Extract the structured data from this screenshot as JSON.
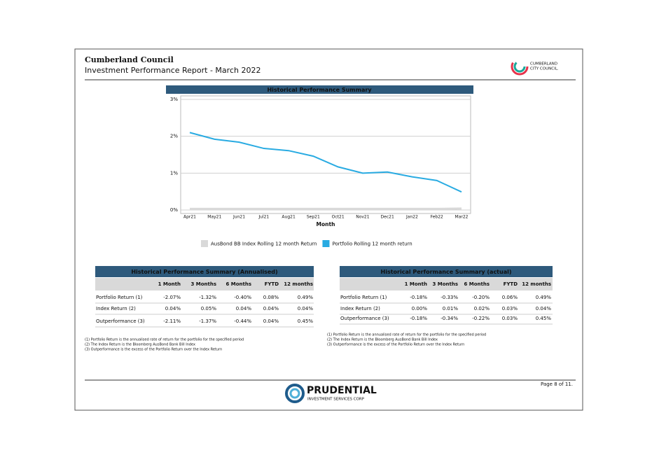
{
  "header": {
    "title": "Cumberland Council",
    "subtitle": "Investment Performance Report - March 2022",
    "logo_lines": [
      "CUMBERLAND",
      "CITY COUNCIL."
    ]
  },
  "chart_data": {
    "type": "line",
    "title": "Historical Performance Summary",
    "x_label": "Month",
    "categories": [
      "Apr21",
      "May21",
      "Jun21",
      "Jul21",
      "Aug21",
      "Sep21",
      "Oct21",
      "Nov21",
      "Dec21",
      "Jan22",
      "Feb22",
      "Mar22"
    ],
    "series": [
      {
        "name": "AusBond BB Index Rolling 12 month Return",
        "color": "#d9d9d9",
        "values": [
          0.03,
          0.03,
          0.03,
          0.03,
          0.03,
          0.03,
          0.03,
          0.03,
          0.03,
          0.03,
          0.03,
          0.04
        ]
      },
      {
        "name": "Portfolio Rolling 12 month return",
        "color": "#29abe2",
        "values": [
          2.1,
          1.92,
          1.84,
          1.67,
          1.61,
          1.46,
          1.17,
          1.0,
          1.03,
          0.9,
          0.8,
          0.49
        ]
      }
    ],
    "ylim": [
      0,
      3
    ],
    "yticks": [
      {
        "value": 0,
        "label": "0%"
      },
      {
        "value": 1,
        "label": "1%"
      },
      {
        "value": 2,
        "label": "2%"
      },
      {
        "value": 3,
        "label": "3%"
      }
    ],
    "grid": true,
    "legend": "bottom"
  },
  "tables": [
    {
      "title": "Historical Performance Summary (Annualised)",
      "columns": [
        "1 Month",
        "3 Months",
        "6 Months",
        "FYTD",
        "12 months"
      ],
      "rows": [
        [
          "Portfolio Return (1)",
          "-2.07%",
          "-1.32%",
          "-0.40%",
          "0.08%",
          "0.49%"
        ],
        [
          "Index Return (2)",
          "0.04%",
          "0.05%",
          "0.04%",
          "0.04%",
          "0.04%"
        ],
        [
          "Outperformance (3)",
          "-2.11%",
          "-1.37%",
          "-0.44%",
          "0.04%",
          "0.45%"
        ]
      ],
      "notes": [
        "(1) Portfolio Return is the annualised rate of return for the portfolio for the specified period",
        "(2) The Index Return is the Bloomberg AusBond Bank Bill Index",
        "(3) Outperformance is the excess of the Portfolio Return over the Index Return"
      ]
    },
    {
      "title": "Historical Performance Summary (actual)",
      "columns": [
        "1 Month",
        "3 Months",
        "6 Months",
        "FYTD",
        "12 months"
      ],
      "rows": [
        [
          "Portfolio Return (1)",
          "-0.18%",
          "-0.33%",
          "-0.20%",
          "0.06%",
          "0.49%"
        ],
        [
          "Index Return (2)",
          "0.00%",
          "0.01%",
          "0.02%",
          "0.03%",
          "0.04%"
        ],
        [
          "Outperformance (3)",
          "-0.18%",
          "-0.34%",
          "-0.22%",
          "0.03%",
          "0.45%"
        ]
      ],
      "notes": [
        "(1) Portfolio Return is the annualised rate of return for the portfolio for the specified period",
        "(2) The Index Return is the Bloomberg AusBond Bank Bill Index",
        "(3) Outperformance is the excess of the Portfolio Return over the Index Return"
      ]
    }
  ],
  "footer": {
    "logo_name": "PRUDENTIAL",
    "logo_tagline": "INVESTMENT SERVICES CORP",
    "page": "Page 8 of 11."
  }
}
